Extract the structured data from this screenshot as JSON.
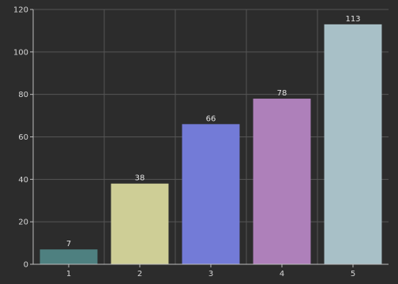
{
  "chart_data": {
    "type": "bar",
    "title": "",
    "xlabel": "",
    "ylabel": "",
    "categories": [
      "1",
      "2",
      "3",
      "4",
      "5"
    ],
    "values": [
      7,
      38,
      66,
      78,
      113
    ],
    "data_labels": [
      "7",
      "38",
      "66",
      "78",
      "113"
    ],
    "yticks": [
      "0",
      "20",
      "40",
      "60",
      "80",
      "100",
      "120"
    ],
    "ylim": [
      0,
      120
    ],
    "grid": true,
    "legend": "none",
    "colors": [
      "#4e8080",
      "#cece96",
      "#737bd7",
      "#ae80ba",
      "#a8c0c7"
    ],
    "background": "#2c2c2c",
    "grid_color": "#555555",
    "axis_color": "#bdbdbd"
  }
}
